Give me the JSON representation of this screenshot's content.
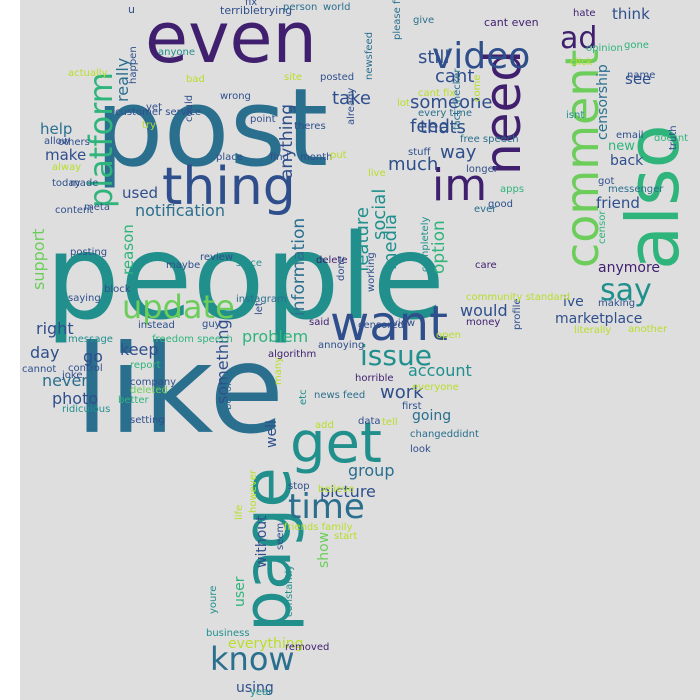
{
  "palette": {
    "page_background": "#ffffff",
    "cloud_background": "#dedede",
    "c0": "#3f1f6e",
    "c1": "#2f4f8c",
    "c2": "#2a6f8e",
    "c3": "#21908d",
    "c4": "#2fb47c",
    "c5": "#6ccd5a",
    "c6": "#b8de29",
    "c7": "#e8e419"
  },
  "words": [
    {
      "text": "people",
      "color": "c3"
    },
    {
      "text": "post",
      "color": "c2"
    },
    {
      "text": "like",
      "color": "c2"
    },
    {
      "text": "even",
      "color": "c0"
    },
    {
      "text": "also",
      "color": "c4"
    },
    {
      "text": "thing",
      "color": "c1"
    },
    {
      "text": "need",
      "color": "c0"
    },
    {
      "text": "get",
      "color": "c3"
    },
    {
      "text": "page",
      "color": "c3"
    },
    {
      "text": "im",
      "color": "c0"
    },
    {
      "text": "want",
      "color": "c1"
    },
    {
      "text": "comment",
      "color": "c5"
    },
    {
      "text": "video",
      "color": "c1"
    },
    {
      "text": "update",
      "color": "c5"
    },
    {
      "text": "know",
      "color": "c2"
    },
    {
      "text": "time",
      "color": "c2"
    },
    {
      "text": "issue",
      "color": "c3"
    },
    {
      "text": "platform",
      "color": "c4"
    },
    {
      "text": "say",
      "color": "c3"
    },
    {
      "text": "ad",
      "color": "c0"
    },
    {
      "text": "feed",
      "color": "c1"
    },
    {
      "text": "cant",
      "color": "c1"
    },
    {
      "text": "still",
      "color": "c1"
    },
    {
      "text": "someone",
      "color": "c1"
    },
    {
      "text": "take",
      "color": "c1"
    },
    {
      "text": "thats",
      "color": "c1"
    },
    {
      "text": "way",
      "color": "c1"
    },
    {
      "text": "much",
      "color": "c1"
    },
    {
      "text": "work",
      "color": "c1"
    },
    {
      "text": "feature",
      "color": "c3"
    },
    {
      "text": "social",
      "color": "c3"
    },
    {
      "text": "media",
      "color": "c3"
    },
    {
      "text": "option",
      "color": "c4"
    },
    {
      "text": "would",
      "color": "c1"
    },
    {
      "text": "account",
      "color": "c3"
    },
    {
      "text": "group",
      "color": "c2"
    },
    {
      "text": "picture",
      "color": "c1"
    },
    {
      "text": "information",
      "color": "c2"
    },
    {
      "text": "anything",
      "color": "c1"
    },
    {
      "text": "notification",
      "color": "c2"
    },
    {
      "text": "used",
      "color": "c1"
    },
    {
      "text": "help",
      "color": "c2"
    },
    {
      "text": "make",
      "color": "c1"
    },
    {
      "text": "reason",
      "color": "c4"
    },
    {
      "text": "support",
      "color": "c5"
    },
    {
      "text": "right",
      "color": "c1"
    },
    {
      "text": "day",
      "color": "c1"
    },
    {
      "text": "go",
      "color": "c1"
    },
    {
      "text": "keep",
      "color": "c1"
    },
    {
      "text": "problem",
      "color": "c4"
    },
    {
      "text": "something",
      "color": "c1"
    },
    {
      "text": "never",
      "color": "c2"
    },
    {
      "text": "photo",
      "color": "c1"
    },
    {
      "text": "really",
      "color": "c2"
    },
    {
      "text": "think",
      "color": "c1"
    },
    {
      "text": "see",
      "color": "c1"
    },
    {
      "text": "censorship",
      "color": "c2"
    },
    {
      "text": "new",
      "color": "c4"
    },
    {
      "text": "back",
      "color": "c1"
    },
    {
      "text": "friend",
      "color": "c1"
    },
    {
      "text": "anymore",
      "color": "c0"
    },
    {
      "text": "ive",
      "color": "c1"
    },
    {
      "text": "marketplace",
      "color": "c1"
    },
    {
      "text": "well",
      "color": "c1"
    },
    {
      "text": "show",
      "color": "c5"
    },
    {
      "text": "without",
      "color": "c1"
    },
    {
      "text": "user",
      "color": "c4"
    },
    {
      "text": "everything",
      "color": "c6"
    },
    {
      "text": "using",
      "color": "c1"
    },
    {
      "text": "going",
      "color": "c2"
    },
    {
      "text": "u",
      "color": "c1"
    },
    {
      "text": "terribletrying",
      "color": "c1"
    },
    {
      "text": "fix",
      "color": "c1"
    },
    {
      "text": "person",
      "color": "c2"
    },
    {
      "text": "world",
      "color": "c2"
    },
    {
      "text": "cant even",
      "color": "c0"
    },
    {
      "text": "hate",
      "color": "c0"
    },
    {
      "text": "opinion",
      "color": "c4"
    },
    {
      "text": "gone",
      "color": "c4"
    },
    {
      "text": "name",
      "color": "c1"
    },
    {
      "text": "click",
      "color": "c6"
    },
    {
      "text": "isnt",
      "color": "c3"
    },
    {
      "text": "email",
      "color": "c1"
    },
    {
      "text": "doesnt",
      "color": "c4"
    },
    {
      "text": "got",
      "color": "c1"
    },
    {
      "text": "messenger",
      "color": "c2"
    },
    {
      "text": "truth",
      "color": "c1"
    },
    {
      "text": "censor",
      "color": "c4"
    },
    {
      "text": "making",
      "color": "c1"
    },
    {
      "text": "another",
      "color": "c6"
    },
    {
      "text": "literally",
      "color": "c6"
    },
    {
      "text": "anyone",
      "color": "c3"
    },
    {
      "text": "actually",
      "color": "c6"
    },
    {
      "text": "bad",
      "color": "c6"
    },
    {
      "text": "site",
      "color": "c6"
    },
    {
      "text": "posted",
      "color": "c1"
    },
    {
      "text": "newsfeed",
      "color": "c2"
    },
    {
      "text": "please fix",
      "color": "c2"
    },
    {
      "text": "give",
      "color": "c2"
    },
    {
      "text": "come",
      "color": "c6"
    },
    {
      "text": "cant fix",
      "color": "c6"
    },
    {
      "text": "every time",
      "color": "c2"
    },
    {
      "text": "fact checker",
      "color": "c2"
    },
    {
      "text": "free speech",
      "color": "c2"
    },
    {
      "text": "longer",
      "color": "c1"
    },
    {
      "text": "apps",
      "color": "c4"
    },
    {
      "text": "good",
      "color": "c1"
    },
    {
      "text": "ever",
      "color": "c2"
    },
    {
      "text": "care",
      "color": "c0"
    },
    {
      "text": "profile",
      "color": "c1"
    },
    {
      "text": "community standard",
      "color": "c6"
    },
    {
      "text": "money",
      "color": "c0"
    },
    {
      "text": "open",
      "color": "c6"
    },
    {
      "text": "everyone",
      "color": "c6"
    },
    {
      "text": "first",
      "color": "c1"
    },
    {
      "text": "changeddidnt",
      "color": "c2"
    },
    {
      "text": "look",
      "color": "c1"
    },
    {
      "text": "tell",
      "color": "c6"
    },
    {
      "text": "data",
      "color": "c1"
    },
    {
      "text": "add",
      "color": "c6"
    },
    {
      "text": "horrible",
      "color": "c0"
    },
    {
      "text": "believe",
      "color": "c6"
    },
    {
      "text": "stop",
      "color": "c1"
    },
    {
      "text": "seem",
      "color": "c1"
    },
    {
      "text": "however",
      "color": "c6"
    },
    {
      "text": "friends family",
      "color": "c6"
    },
    {
      "text": "start",
      "color": "c6"
    },
    {
      "text": "life",
      "color": "c6"
    },
    {
      "text": "constantly",
      "color": "c3"
    },
    {
      "text": "youre",
      "color": "c3"
    },
    {
      "text": "business",
      "color": "c3"
    },
    {
      "text": "removed",
      "color": "c0"
    },
    {
      "text": "year",
      "color": "c3"
    },
    {
      "text": "many",
      "color": "c6"
    },
    {
      "text": "etc",
      "color": "c3"
    },
    {
      "text": "news feed",
      "color": "c2"
    },
    {
      "text": "annoying",
      "color": "c1"
    },
    {
      "text": "algorithm",
      "color": "c0"
    },
    {
      "text": "said",
      "color": "c0"
    },
    {
      "text": "censored",
      "color": "c1"
    },
    {
      "text": "view",
      "color": "c1"
    },
    {
      "text": "delete",
      "color": "c0"
    },
    {
      "text": "done",
      "color": "c1"
    },
    {
      "text": "working",
      "color": "c1"
    },
    {
      "text": "completely",
      "color": "c3"
    },
    {
      "text": "instagram",
      "color": "c2"
    },
    {
      "text": "let",
      "color": "c1"
    },
    {
      "text": "since",
      "color": "c3"
    },
    {
      "text": "review",
      "color": "c1"
    },
    {
      "text": "guy",
      "color": "c1"
    },
    {
      "text": "become",
      "color": "c2"
    },
    {
      "text": "freedom speech",
      "color": "c4"
    },
    {
      "text": "instead",
      "color": "c1"
    },
    {
      "text": "report",
      "color": "c4"
    },
    {
      "text": "company",
      "color": "c1"
    },
    {
      "text": "deleted",
      "color": "c5"
    },
    {
      "text": "better",
      "color": "c4"
    },
    {
      "text": "setting",
      "color": "c1"
    },
    {
      "text": "ridiculous",
      "color": "c3"
    },
    {
      "text": "joke",
      "color": "c1"
    },
    {
      "text": "control",
      "color": "c1"
    },
    {
      "text": "cannot",
      "color": "c1"
    },
    {
      "text": "message",
      "color": "c3"
    },
    {
      "text": "saying",
      "color": "c1"
    },
    {
      "text": "block",
      "color": "c1"
    },
    {
      "text": "posting",
      "color": "c1"
    },
    {
      "text": "maybe",
      "color": "c1"
    },
    {
      "text": "content",
      "color": "c1"
    },
    {
      "text": "meta",
      "color": "c1"
    },
    {
      "text": "today",
      "color": "c1"
    },
    {
      "text": "made",
      "color": "c1"
    },
    {
      "text": "alway",
      "color": "c6"
    },
    {
      "text": "allow",
      "color": "c1"
    },
    {
      "text": "others",
      "color": "c1"
    },
    {
      "text": "customer service",
      "color": "c1"
    },
    {
      "text": "yet",
      "color": "c1"
    },
    {
      "text": "try",
      "color": "c6"
    },
    {
      "text": "happen",
      "color": "c1"
    },
    {
      "text": "wrong",
      "color": "c1"
    },
    {
      "text": "point",
      "color": "c1"
    },
    {
      "text": "could",
      "color": "c1"
    },
    {
      "text": "place",
      "color": "c1"
    },
    {
      "text": "theres",
      "color": "c1"
    },
    {
      "text": "find",
      "color": "c1"
    },
    {
      "text": "month",
      "color": "c1"
    },
    {
      "text": "put",
      "color": "c6"
    },
    {
      "text": "already",
      "color": "c1"
    },
    {
      "text": "live",
      "color": "c6"
    },
    {
      "text": "stuff",
      "color": "c1"
    },
    {
      "text": "lot",
      "color": "c6"
    }
  ]
}
